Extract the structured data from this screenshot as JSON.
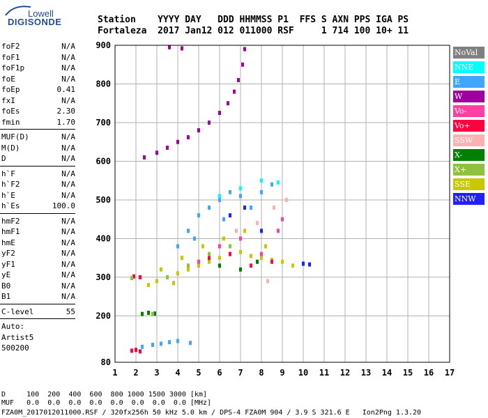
{
  "logo": {
    "line1": "Lowell",
    "line2": "DIGISONDE"
  },
  "header": {
    "row1": "Station    YYYY DAY   DDD HHMMSS P1  FFS S AXN PPS IGA PS",
    "row2": "Fortaleza  2017 Jan12 012 011000 RSF     1 714 100 10+ 11"
  },
  "params": {
    "group1": [
      {
        "name": "foF2",
        "value": "N/A"
      },
      {
        "name": "foF1",
        "value": "N/A"
      },
      {
        "name": "foF1p",
        "value": "N/A"
      },
      {
        "name": "foE",
        "value": "N/A"
      },
      {
        "name": "foEp",
        "value": "0.41"
      },
      {
        "name": "fxI",
        "value": "N/A"
      },
      {
        "name": "foEs",
        "value": "2.30"
      },
      {
        "name": "fmin",
        "value": "1.70"
      }
    ],
    "group2": [
      {
        "name": "MUF(D)",
        "value": "N/A"
      },
      {
        "name": "M(D)",
        "value": "N/A"
      },
      {
        "name": "D",
        "value": "N/A"
      }
    ],
    "group3": [
      {
        "name": "h`F",
        "value": "N/A"
      },
      {
        "name": "h`F2",
        "value": "N/A"
      },
      {
        "name": "h`E",
        "value": "N/A"
      },
      {
        "name": "h`Es",
        "value": "100.0"
      }
    ],
    "group4": [
      {
        "name": "hmF2",
        "value": "N/A"
      },
      {
        "name": "hmF1",
        "value": "N/A"
      },
      {
        "name": "hmE",
        "value": "N/A"
      },
      {
        "name": "yF2",
        "value": "N/A"
      },
      {
        "name": "yF1",
        "value": "N/A"
      },
      {
        "name": "yE",
        "value": "N/A"
      },
      {
        "name": "B0",
        "value": "N/A"
      },
      {
        "name": "B1",
        "value": "N/A"
      }
    ],
    "clevel": {
      "name": "C-level",
      "value": "55"
    },
    "auto": [
      "Auto:",
      "Artist5",
      "500200"
    ]
  },
  "legend": [
    {
      "label": "NoVal",
      "color": "#808080",
      "text_color": "#ffffff"
    },
    {
      "label": "NNE",
      "color": "#00ffff",
      "text_color": "#ffffff"
    },
    {
      "label": "E",
      "color": "#3fa7ff",
      "text_color": "#ffffff"
    },
    {
      "label": "W",
      "color": "#a000a0",
      "text_color": "#ffffff"
    },
    {
      "label": "Vo-",
      "color": "#ff40a0",
      "text_color": "#ffffff"
    },
    {
      "label": "Vo+",
      "color": "#ff0040",
      "text_color": "#ffffff"
    },
    {
      "label": "SSW",
      "color": "#ffb0b0",
      "text_color": "#ffffff"
    },
    {
      "label": "X-",
      "color": "#008000",
      "text_color": "#ffffff"
    },
    {
      "label": "X+",
      "color": "#90c040",
      "text_color": "#ffffff"
    },
    {
      "label": "SSE",
      "color": "#c8c800",
      "text_color": "#ffffff"
    },
    {
      "label": "NNW",
      "color": "#2020ff",
      "text_color": "#ffffff"
    }
  ],
  "footer": {
    "d_row": "D     100  200  400  600  800 1000 1500 3000 [km]",
    "muf_row": "MUF   0.0  0.0  0.0  0.0  0.0  0.0  0.0  0.0 [MHz]",
    "info": "FZA0M_2017012011000.RSF / 320fx256h 50 kHz 5.0 km / DPS-4 FZA0M 904 / 3.9 S 321.6 E   Ion2Png 1.3.20"
  },
  "chart_data": {
    "type": "scatter",
    "title": "",
    "xlabel": "",
    "ylabel": "",
    "xlim": [
      1,
      17
    ],
    "ylim": [
      80,
      900
    ],
    "x_ticks": [
      1,
      2,
      3,
      4,
      5,
      6,
      7,
      8,
      9,
      10,
      11,
      12,
      13,
      14,
      15,
      16,
      17
    ],
    "y_ticks": [
      80,
      200,
      300,
      400,
      500,
      600,
      700,
      800,
      900
    ],
    "grid": true,
    "series": [
      {
        "color": "#a000a0",
        "points": [
          [
            2.4,
            610
          ],
          [
            3.0,
            622
          ],
          [
            3.5,
            635
          ],
          [
            4.0,
            650
          ],
          [
            4.5,
            662
          ],
          [
            5.0,
            680
          ],
          [
            5.5,
            700
          ],
          [
            6.0,
            725
          ],
          [
            6.4,
            750
          ],
          [
            6.7,
            780
          ],
          [
            6.9,
            810
          ],
          [
            7.1,
            850
          ],
          [
            7.2,
            890
          ],
          [
            3.6,
            895
          ],
          [
            4.2,
            892
          ]
        ]
      },
      {
        "color": "#c8c800",
        "points": [
          [
            3.0,
            290
          ],
          [
            3.5,
            300
          ],
          [
            4.0,
            310
          ],
          [
            4.5,
            320
          ],
          [
            5.0,
            330
          ],
          [
            5.5,
            340
          ],
          [
            6.0,
            350
          ],
          [
            6.5,
            360
          ],
          [
            7.0,
            365
          ],
          [
            7.5,
            355
          ],
          [
            8.0,
            350
          ],
          [
            8.5,
            345
          ],
          [
            9.0,
            340
          ],
          [
            9.5,
            330
          ],
          [
            3.2,
            320
          ],
          [
            4.2,
            350
          ],
          [
            5.2,
            380
          ],
          [
            6.2,
            400
          ],
          [
            7.2,
            420
          ],
          [
            8.2,
            380
          ],
          [
            2.6,
            280
          ],
          [
            3.8,
            285
          ]
        ]
      },
      {
        "color": "#3fa7ff",
        "points": [
          [
            4.0,
            380
          ],
          [
            4.5,
            420
          ],
          [
            5.0,
            460
          ],
          [
            5.5,
            480
          ],
          [
            6.0,
            500
          ],
          [
            6.5,
            520
          ],
          [
            7.0,
            510
          ],
          [
            7.5,
            480
          ],
          [
            8.0,
            520
          ],
          [
            8.5,
            540
          ],
          [
            4.8,
            400
          ],
          [
            6.2,
            450
          ],
          [
            2.3,
            120
          ],
          [
            2.8,
            125
          ],
          [
            3.2,
            128
          ],
          [
            3.6,
            132
          ],
          [
            4.0,
            135
          ],
          [
            4.6,
            130
          ]
        ]
      },
      {
        "color": "#ff0040",
        "points": [
          [
            1.8,
            110
          ],
          [
            2.0,
            112
          ],
          [
            2.2,
            108
          ],
          [
            1.9,
            302
          ],
          [
            2.2,
            300
          ],
          [
            5.5,
            350
          ],
          [
            6.5,
            360
          ],
          [
            7.5,
            330
          ],
          [
            8.5,
            340
          ]
        ]
      },
      {
        "color": "#008000",
        "points": [
          [
            2.3,
            205
          ],
          [
            2.6,
            208
          ],
          [
            2.9,
            206
          ],
          [
            6.0,
            330
          ],
          [
            7.0,
            320
          ],
          [
            7.8,
            340
          ]
        ]
      },
      {
        "color": "#ff40a0",
        "points": [
          [
            5.0,
            340
          ],
          [
            6.0,
            380
          ],
          [
            7.0,
            400
          ],
          [
            8.0,
            360
          ],
          [
            8.8,
            420
          ],
          [
            9.0,
            450
          ]
        ]
      },
      {
        "color": "#ffb0b0",
        "points": [
          [
            6.8,
            420
          ],
          [
            7.8,
            440
          ],
          [
            8.6,
            480
          ],
          [
            9.2,
            500
          ],
          [
            8.3,
            290
          ]
        ]
      },
      {
        "color": "#2020ff",
        "points": [
          [
            6.5,
            460
          ],
          [
            7.2,
            480
          ],
          [
            8.0,
            420
          ],
          [
            10.0,
            335
          ],
          [
            10.3,
            333
          ]
        ]
      },
      {
        "color": "#90c040",
        "points": [
          [
            3.5,
            300
          ],
          [
            4.5,
            330
          ],
          [
            5.5,
            360
          ],
          [
            6.5,
            380
          ],
          [
            2.8,
            205
          ],
          [
            1.8,
            298
          ]
        ]
      },
      {
        "color": "#00ffff",
        "points": [
          [
            6.0,
            510
          ],
          [
            7.0,
            530
          ],
          [
            8.0,
            550
          ],
          [
            8.8,
            545
          ]
        ]
      }
    ]
  }
}
